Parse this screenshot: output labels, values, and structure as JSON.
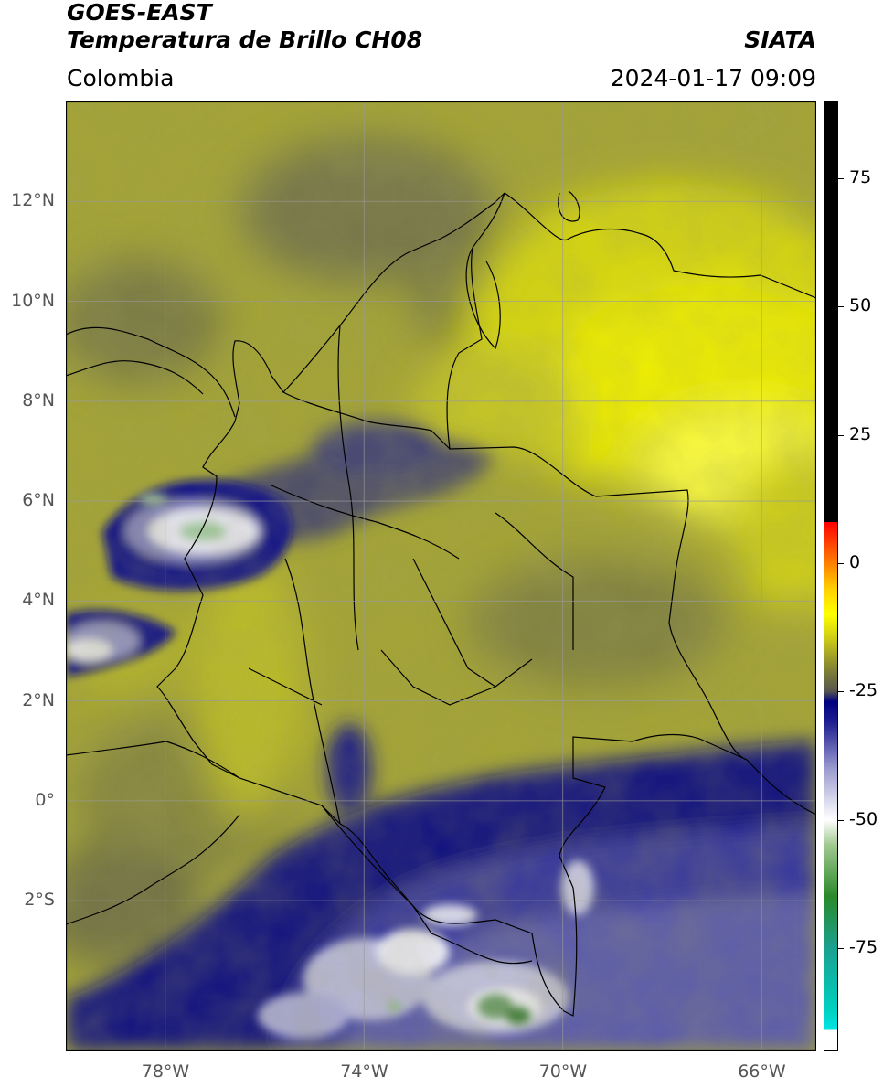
{
  "header": {
    "title_line1": "GOES-EAST",
    "title_line2": "Temperatura de Brillo CH08",
    "region": "Colombia",
    "org": "SIATA",
    "datetime": "2024-01-17 09:09"
  },
  "map": {
    "lon_range": [
      -80,
      -64.9
    ],
    "lat_range": [
      -5,
      14
    ],
    "lat_ticks": [
      {
        "lat": 12,
        "label": "12°N"
      },
      {
        "lat": 10,
        "label": "10°N"
      },
      {
        "lat": 8,
        "label": "8°N"
      },
      {
        "lat": 6,
        "label": "6°N"
      },
      {
        "lat": 4,
        "label": "4°N"
      },
      {
        "lat": 2,
        "label": "2°N"
      },
      {
        "lat": 0,
        "label": "0°"
      },
      {
        "lat": -2,
        "label": "2°S"
      }
    ],
    "lon_ticks": [
      {
        "lon": -78,
        "label": "78°W"
      },
      {
        "lon": -74,
        "label": "74°W"
      },
      {
        "lon": -70,
        "label": "70°W"
      },
      {
        "lon": -66,
        "label": "66°W"
      }
    ],
    "grid": true,
    "colors": {
      "warm_yellow": "#f0f000",
      "olive": "#a6a630",
      "dark_olive": "#666640",
      "navy": "#000080",
      "lavender": "#8c8cc8",
      "white": "#ffffff",
      "green": "#3a8a3a"
    }
  },
  "colorbar": {
    "min": -95,
    "max": 90,
    "ticks": [
      {
        "value": 75,
        "label": "75"
      },
      {
        "value": 50,
        "label": "50"
      },
      {
        "value": 25,
        "label": "25"
      },
      {
        "value": 0,
        "label": "0"
      },
      {
        "value": -25,
        "label": "-25"
      },
      {
        "value": -50,
        "label": "-50"
      },
      {
        "value": -75,
        "label": "-75"
      }
    ],
    "stops": [
      {
        "value": -95,
        "color": "#ffffff"
      },
      {
        "value": -91,
        "color": "#ffffff"
      },
      {
        "value": -91,
        "color": "#00e5e5"
      },
      {
        "value": -87,
        "color": "#00d0c0"
      },
      {
        "value": -75,
        "color": "#1aa090"
      },
      {
        "value": -65,
        "color": "#2a8a2a"
      },
      {
        "value": -55,
        "color": "#a0c890"
      },
      {
        "value": -50,
        "color": "#ffffff"
      },
      {
        "value": -40,
        "color": "#9a9ad0"
      },
      {
        "value": -31,
        "color": "#1e1e90"
      },
      {
        "value": -27,
        "color": "#000080"
      },
      {
        "value": -25,
        "color": "#555550"
      },
      {
        "value": -20,
        "color": "#8a8a30"
      },
      {
        "value": -15,
        "color": "#c8c818"
      },
      {
        "value": -10,
        "color": "#ffff00"
      },
      {
        "value": -5,
        "color": "#ffd000"
      },
      {
        "value": 0,
        "color": "#ff8000"
      },
      {
        "value": 8,
        "color": "#ff0000"
      },
      {
        "value": 8,
        "color": "#000000"
      },
      {
        "value": 90,
        "color": "#000000"
      }
    ]
  }
}
